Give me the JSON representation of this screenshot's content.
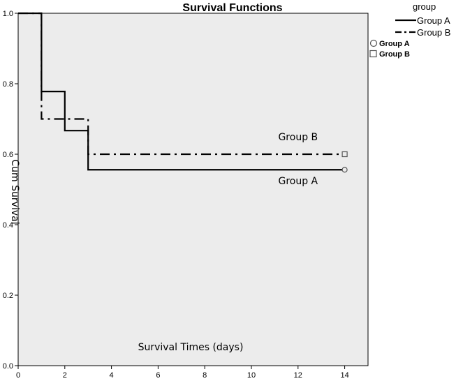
{
  "chart_data": {
    "type": "line",
    "title": "Survival Functions",
    "xlabel": "Survival Times (days)",
    "ylabel": "Cum Survival",
    "xlim": [
      0,
      15
    ],
    "ylim": [
      0,
      1.0
    ],
    "x_ticks": [
      0,
      2,
      4,
      6,
      8,
      10,
      12,
      14
    ],
    "y_ticks": [
      0.0,
      0.2,
      0.4,
      0.6,
      0.8,
      1.0
    ],
    "x_tick_labels": [
      "0",
      "2",
      "4",
      "6",
      "8",
      "10",
      "12",
      "14"
    ],
    "y_tick_labels": [
      "0.0",
      "0.2",
      "0.4",
      "0.6",
      "0.8",
      "1.0"
    ],
    "grid": false,
    "background": "#ececec",
    "legend_title": "group",
    "legend_placement": "top-right",
    "series": [
      {
        "name": "Group A",
        "step": true,
        "line_style": "solid",
        "color": "#000000",
        "x": [
          0,
          1,
          2,
          3,
          14
        ],
        "y": [
          1.0,
          0.778,
          0.667,
          0.556,
          0.556
        ],
        "censored": [
          {
            "x": 14,
            "y": 0.556
          }
        ],
        "censor_marker": "circle"
      },
      {
        "name": "Group B",
        "step": true,
        "line_style": "dash-dot",
        "color": "#000000",
        "x": [
          0,
          1,
          3,
          14
        ],
        "y": [
          1.0,
          0.7,
          0.6,
          0.6
        ],
        "censored": [
          {
            "x": 14,
            "y": 0.6
          }
        ],
        "censor_marker": "square"
      }
    ],
    "censor_legend": [
      "Group A",
      "Group B"
    ],
    "annotations": [
      {
        "text": "Group B",
        "x": 12,
        "y": 0.64
      },
      {
        "text": "Group A",
        "x": 12,
        "y": 0.515
      }
    ]
  }
}
